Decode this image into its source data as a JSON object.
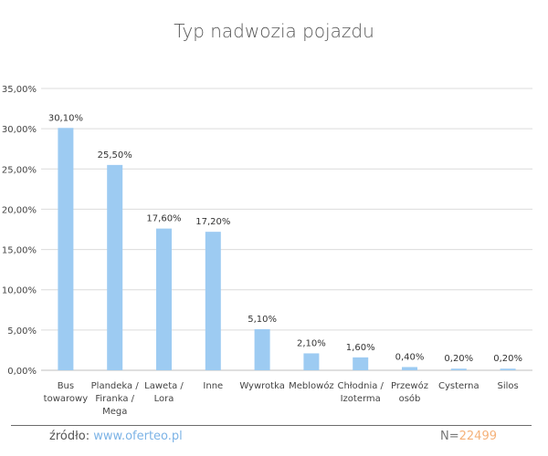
{
  "chart_data": {
    "type": "bar",
    "title": "Typ nadwozia pojazdu",
    "xlabel": "",
    "ylabel": "",
    "ylim": [
      0,
      35
    ],
    "yticks": [
      "0,00%",
      "5,00%",
      "10,00%",
      "15,00%",
      "20,00%",
      "25,00%",
      "30,00%",
      "35,00%"
    ],
    "categories": [
      [
        "Bus",
        "towarowy"
      ],
      [
        "Plandeka /",
        "Firanka /",
        "Mega"
      ],
      [
        "Laweta /",
        "Lora"
      ],
      [
        "Inne"
      ],
      [
        "Wywrotka"
      ],
      [
        "Meblowóz"
      ],
      [
        "Chłodnia /",
        "Izoterma"
      ],
      [
        "Przewóz",
        "osób"
      ],
      [
        "Cysterna"
      ],
      [
        "Silos"
      ]
    ],
    "values": [
      30.1,
      25.5,
      17.6,
      17.2,
      5.1,
      2.1,
      1.6,
      0.4,
      0.2,
      0.2
    ],
    "data_labels": [
      "30,10%",
      "25,50%",
      "17,60%",
      "17,20%",
      "5,10%",
      "2,10%",
      "1,60%",
      "0,40%",
      "0,20%",
      "0,20%"
    ],
    "grid": true,
    "legend": "none",
    "bar_color": "#9dcbf2"
  },
  "footer": {
    "source_label": "źródło: ",
    "source_link": "www.oferteo.pl",
    "count_label": "N=",
    "count_value": "22499"
  }
}
